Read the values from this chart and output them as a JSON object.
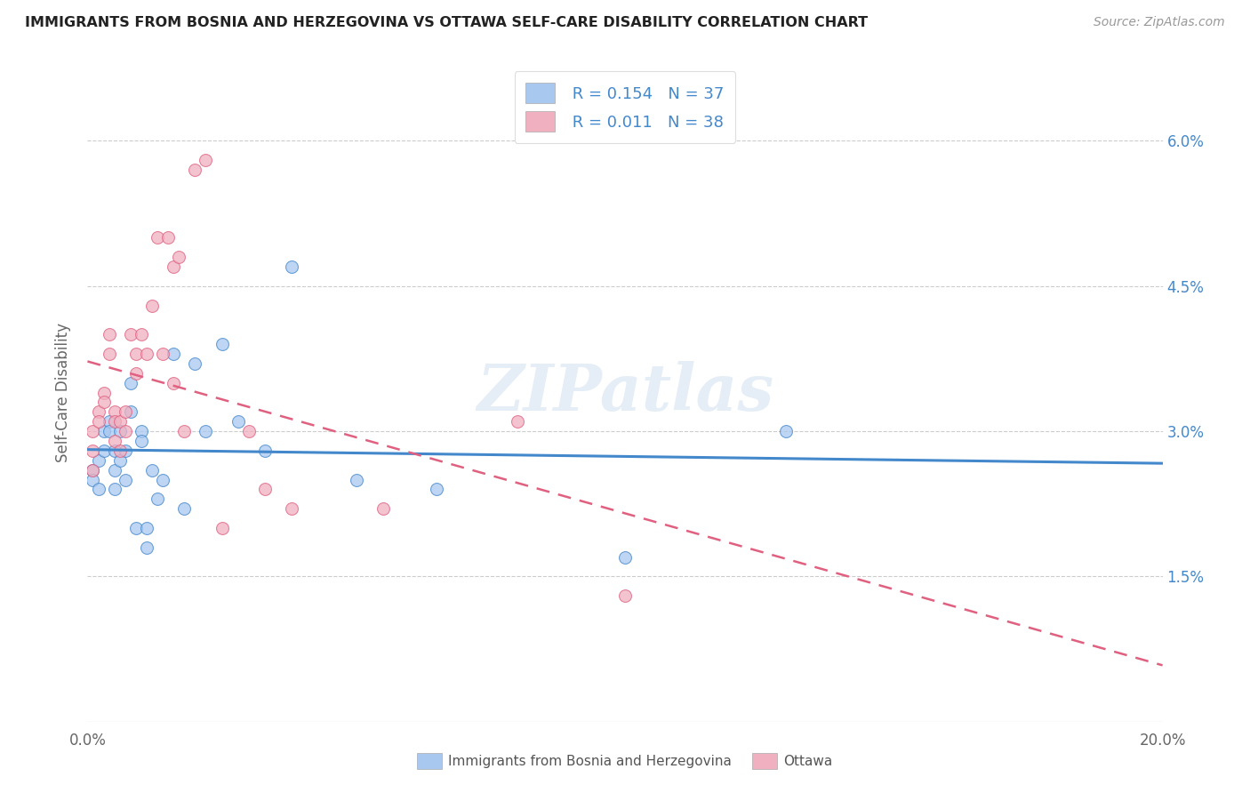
{
  "title": "IMMIGRANTS FROM BOSNIA AND HERZEGOVINA VS OTTAWA SELF-CARE DISABILITY CORRELATION CHART",
  "source": "Source: ZipAtlas.com",
  "ylabel": "Self-Care Disability",
  "yticks": [
    "6.0%",
    "4.5%",
    "3.0%",
    "1.5%"
  ],
  "ytick_vals": [
    0.06,
    0.045,
    0.03,
    0.015
  ],
  "xlim": [
    0.0,
    0.2
  ],
  "ylim": [
    0.0,
    0.068
  ],
  "legend_r1": "R = 0.154",
  "legend_n1": "N = 37",
  "legend_r2": "R = 0.011",
  "legend_n2": "N = 38",
  "color_blue": "#A8C8F0",
  "color_pink": "#F0B0C0",
  "line_color_blue": "#4488CC",
  "line_color_pink": "#E06080",
  "watermark": "ZIPatlas",
  "blue_x": [
    0.001,
    0.001,
    0.002,
    0.002,
    0.003,
    0.003,
    0.004,
    0.004,
    0.005,
    0.005,
    0.005,
    0.006,
    0.006,
    0.007,
    0.007,
    0.008,
    0.008,
    0.009,
    0.01,
    0.01,
    0.011,
    0.011,
    0.012,
    0.013,
    0.014,
    0.016,
    0.018,
    0.02,
    0.022,
    0.025,
    0.028,
    0.033,
    0.038,
    0.05,
    0.065,
    0.1,
    0.13
  ],
  "blue_y": [
    0.026,
    0.025,
    0.027,
    0.024,
    0.03,
    0.028,
    0.031,
    0.03,
    0.028,
    0.026,
    0.024,
    0.03,
    0.027,
    0.028,
    0.025,
    0.035,
    0.032,
    0.02,
    0.03,
    0.029,
    0.02,
    0.018,
    0.026,
    0.023,
    0.025,
    0.038,
    0.022,
    0.037,
    0.03,
    0.039,
    0.031,
    0.028,
    0.047,
    0.025,
    0.024,
    0.017,
    0.03
  ],
  "pink_x": [
    0.001,
    0.001,
    0.001,
    0.002,
    0.002,
    0.003,
    0.003,
    0.004,
    0.004,
    0.005,
    0.005,
    0.005,
    0.006,
    0.006,
    0.007,
    0.007,
    0.008,
    0.009,
    0.009,
    0.01,
    0.011,
    0.012,
    0.013,
    0.014,
    0.015,
    0.016,
    0.016,
    0.017,
    0.018,
    0.02,
    0.022,
    0.025,
    0.03,
    0.033,
    0.038,
    0.055,
    0.08,
    0.1
  ],
  "pink_y": [
    0.03,
    0.028,
    0.026,
    0.032,
    0.031,
    0.034,
    0.033,
    0.04,
    0.038,
    0.032,
    0.031,
    0.029,
    0.031,
    0.028,
    0.03,
    0.032,
    0.04,
    0.038,
    0.036,
    0.04,
    0.038,
    0.043,
    0.05,
    0.038,
    0.05,
    0.035,
    0.047,
    0.048,
    0.03,
    0.057,
    0.058,
    0.02,
    0.03,
    0.024,
    0.022,
    0.022,
    0.031,
    0.013
  ]
}
